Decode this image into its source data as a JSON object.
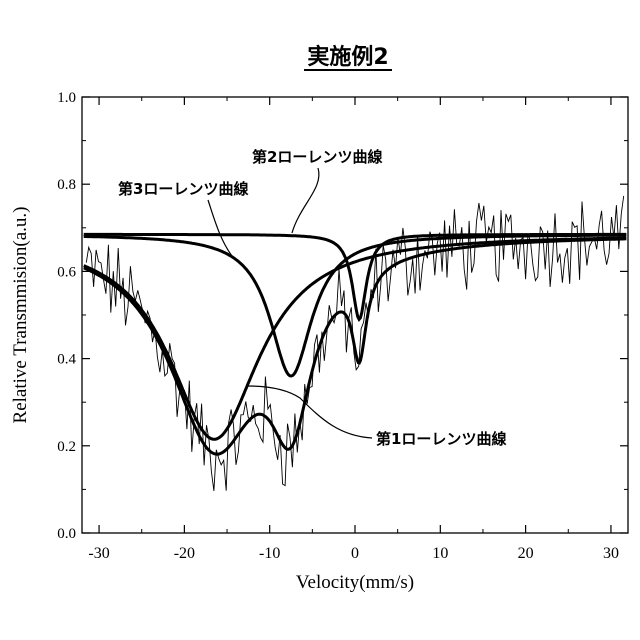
{
  "chart_data": {
    "type": "line",
    "title": "実施例2",
    "xlabel": "Velocity(mm/s)",
    "ylabel": "Relative Transmmision(a.u.)",
    "xlim": [
      -32,
      32
    ],
    "ylim": [
      0,
      1.0
    ],
    "x_ticks": [
      -30,
      -20,
      -10,
      0,
      10,
      20,
      30
    ],
    "x_tick_labels": [
      "-30",
      "-20",
      "-10",
      "0",
      "10",
      "20",
      "30"
    ],
    "y_ticks": [
      0.0,
      0.2,
      0.4,
      0.6,
      0.8,
      1.0
    ],
    "y_tick_labels": [
      "0.0",
      "0.2",
      "0.4",
      "0.6",
      "0.8",
      "1.0"
    ],
    "baseline": 0.685,
    "components": [
      {
        "label": "第1ローレンツ曲線",
        "center": -16.5,
        "depth": 0.47,
        "hwhm": 6.5
      },
      {
        "label": "第2ローレンツ曲線",
        "center": 0.5,
        "depth": 0.195,
        "hwhm": 1.0
      },
      {
        "label": "第3ローレンツ曲線",
        "center": -7.5,
        "depth": 0.325,
        "hwhm": 3.0
      }
    ],
    "annotations": [
      {
        "text": "第2ローレンツ曲線"
      },
      {
        "text": "第3ローレンツ曲線"
      },
      {
        "text": "第1ローレンツ曲線"
      }
    ],
    "measured_points": {
      "x_min": -31.5,
      "x_max": 31.5,
      "count": 220
    }
  }
}
